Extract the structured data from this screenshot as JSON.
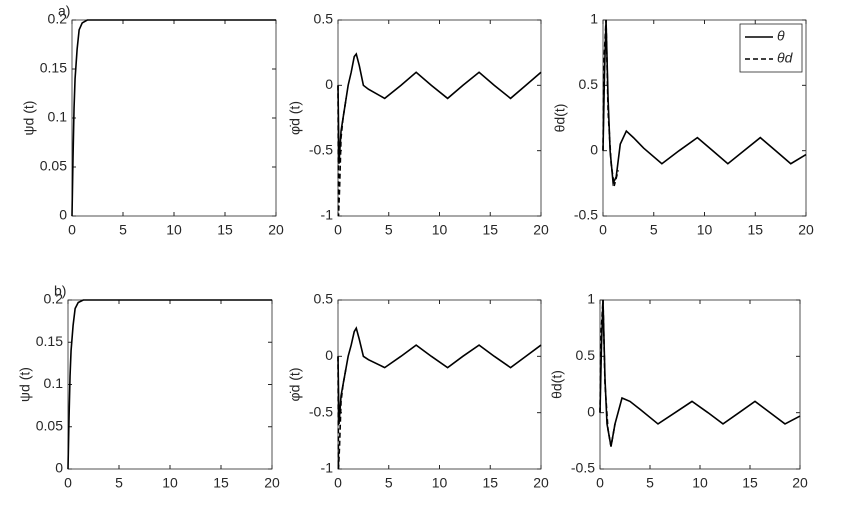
{
  "chart_data": [
    {
      "type": "line",
      "panel_label": "a)",
      "ylabel": "ψd (t)",
      "xlim": [
        0,
        20
      ],
      "xticks": [
        0,
        5,
        10,
        15,
        20
      ],
      "ylim": [
        0,
        0.2
      ],
      "yticks": [
        0,
        0.05,
        0.1,
        0.15,
        0.2
      ],
      "series": [
        {
          "color": "#000000",
          "dash": false,
          "x": [
            0,
            0.1,
            0.2,
            0.3,
            0.5,
            0.7,
            1,
            1.5,
            2,
            5,
            10,
            15,
            20
          ],
          "values": [
            0,
            0.06,
            0.11,
            0.14,
            0.17,
            0.19,
            0.197,
            0.2,
            0.2,
            0.2,
            0.2,
            0.2,
            0.2
          ]
        }
      ]
    },
    {
      "type": "line",
      "ylabel": "φ̇d (t)",
      "xlim": [
        0,
        20
      ],
      "xticks": [
        0,
        5,
        10,
        15,
        20
      ],
      "ylim": [
        -1,
        0.5
      ],
      "yticks": [
        -1,
        -0.5,
        0,
        0.5
      ],
      "series": [
        {
          "color": "#000000",
          "dash": false,
          "x": [
            0,
            0.1,
            0.3,
            0.5,
            0.8,
            1,
            1.3,
            1.6,
            1.8,
            2.1,
            2.5,
            3,
            4.6,
            6.2,
            7.7,
            9.2,
            10.8,
            12.3,
            13.9,
            15.4,
            17,
            18.5,
            20
          ],
          "values": [
            0,
            -0.6,
            -0.35,
            -0.25,
            -0.1,
            0,
            0.1,
            0.22,
            0.24,
            0.15,
            0,
            -0.03,
            -0.1,
            0,
            0.1,
            0,
            -0.1,
            0,
            0.1,
            0,
            -0.1,
            0,
            0.1
          ]
        },
        {
          "color": "#000000",
          "dash": true,
          "x": [
            0,
            0.05,
            0.15,
            0.3,
            0.5,
            0.8
          ],
          "values": [
            0,
            -1,
            -0.8,
            -0.4,
            -0.25,
            -0.1
          ]
        }
      ]
    },
    {
      "type": "line",
      "ylabel": "θd(t)",
      "legend": "top-right",
      "xlim": [
        0,
        20
      ],
      "xticks": [
        0,
        5,
        10,
        15,
        20
      ],
      "ylim": [
        -0.5,
        1
      ],
      "yticks": [
        -0.5,
        0,
        0.5,
        1
      ],
      "series": [
        {
          "name": "θ",
          "color": "#000000",
          "dash": false,
          "x": [
            0,
            0.15,
            0.3,
            0.5,
            0.7,
            1,
            1.3,
            1.7,
            2.3,
            3,
            4,
            5.8,
            7.5,
            9.3,
            10.8,
            12.3,
            13.9,
            15.5,
            17,
            18.5,
            20
          ],
          "values": [
            0,
            0.6,
            1,
            0.4,
            0,
            -0.25,
            -0.2,
            0.05,
            0.15,
            0.1,
            0.02,
            -0.1,
            0,
            0.1,
            0,
            -0.1,
            0,
            0.1,
            0,
            -0.1,
            -0.03
          ]
        },
        {
          "name": "θd",
          "color": "#000000",
          "dash": true,
          "x": [
            0,
            0.1,
            0.3,
            0.5,
            0.8,
            1.1,
            1.5
          ],
          "values": [
            0,
            0.7,
            1,
            0.3,
            -0.1,
            -0.27,
            -0.15
          ]
        }
      ]
    },
    {
      "type": "line",
      "panel_label": "b)",
      "ylabel": "ψd (t)",
      "xlim": [
        0,
        20
      ],
      "xticks": [
        0,
        5,
        10,
        15,
        20
      ],
      "ylim": [
        0,
        0.2
      ],
      "yticks": [
        0,
        0.05,
        0.1,
        0.15,
        0.2
      ],
      "series": [
        {
          "color": "#000000",
          "dash": false,
          "x": [
            0,
            0.1,
            0.2,
            0.3,
            0.5,
            0.7,
            1,
            1.5,
            2,
            5,
            10,
            15,
            20
          ],
          "values": [
            0,
            0.06,
            0.11,
            0.14,
            0.17,
            0.19,
            0.197,
            0.2,
            0.2,
            0.2,
            0.2,
            0.2,
            0.2
          ]
        }
      ]
    },
    {
      "type": "line",
      "ylabel": "φ̇d (t)",
      "xlim": [
        0,
        20
      ],
      "xticks": [
        0,
        5,
        10,
        15,
        20
      ],
      "ylim": [
        -1,
        0.5
      ],
      "yticks": [
        -1,
        -0.5,
        0,
        0.5
      ],
      "series": [
        {
          "color": "#000000",
          "dash": false,
          "x": [
            0,
            0.1,
            0.3,
            0.5,
            0.8,
            1,
            1.3,
            1.6,
            1.8,
            2.1,
            2.5,
            3,
            4.6,
            6.2,
            7.7,
            9.2,
            10.8,
            12.3,
            13.9,
            15.4,
            17,
            18.5,
            20
          ],
          "values": [
            0,
            -0.6,
            -0.35,
            -0.25,
            -0.1,
            0,
            0.1,
            0.22,
            0.25,
            0.15,
            0,
            -0.03,
            -0.1,
            0,
            0.1,
            0,
            -0.1,
            0,
            0.1,
            0,
            -0.1,
            0,
            0.1
          ]
        },
        {
          "color": "#000000",
          "dash": true,
          "x": [
            0,
            0.05,
            0.15,
            0.3,
            0.5,
            0.8
          ],
          "values": [
            0,
            -1,
            -0.8,
            -0.4,
            -0.25,
            -0.1
          ]
        }
      ]
    },
    {
      "type": "line",
      "ylabel": "θd(t)",
      "xlim": [
        0,
        20
      ],
      "xticks": [
        0,
        5,
        10,
        15,
        20
      ],
      "ylim": [
        -0.5,
        1
      ],
      "yticks": [
        -0.5,
        0,
        0.5,
        1
      ],
      "series": [
        {
          "color": "#000000",
          "dash": false,
          "x": [
            0,
            0.15,
            0.3,
            0.5,
            0.7,
            1.1,
            1.5,
            2.2,
            3,
            4,
            5.8,
            7.5,
            9.2,
            10.8,
            12.3,
            13.9,
            15.5,
            17,
            18.5,
            20
          ],
          "values": [
            0,
            0.6,
            1,
            0.3,
            -0.1,
            -0.3,
            -0.1,
            0.13,
            0.1,
            0.03,
            -0.1,
            0,
            0.1,
            0,
            -0.1,
            0,
            0.1,
            0,
            -0.1,
            -0.03
          ]
        },
        {
          "color": "#000000",
          "dash": true,
          "x": [
            0,
            0.1,
            0.3,
            0.5,
            0.8,
            1.1,
            1.5
          ],
          "values": [
            0,
            0.7,
            1,
            0.25,
            -0.15,
            -0.3,
            -0.1
          ]
        }
      ]
    }
  ]
}
